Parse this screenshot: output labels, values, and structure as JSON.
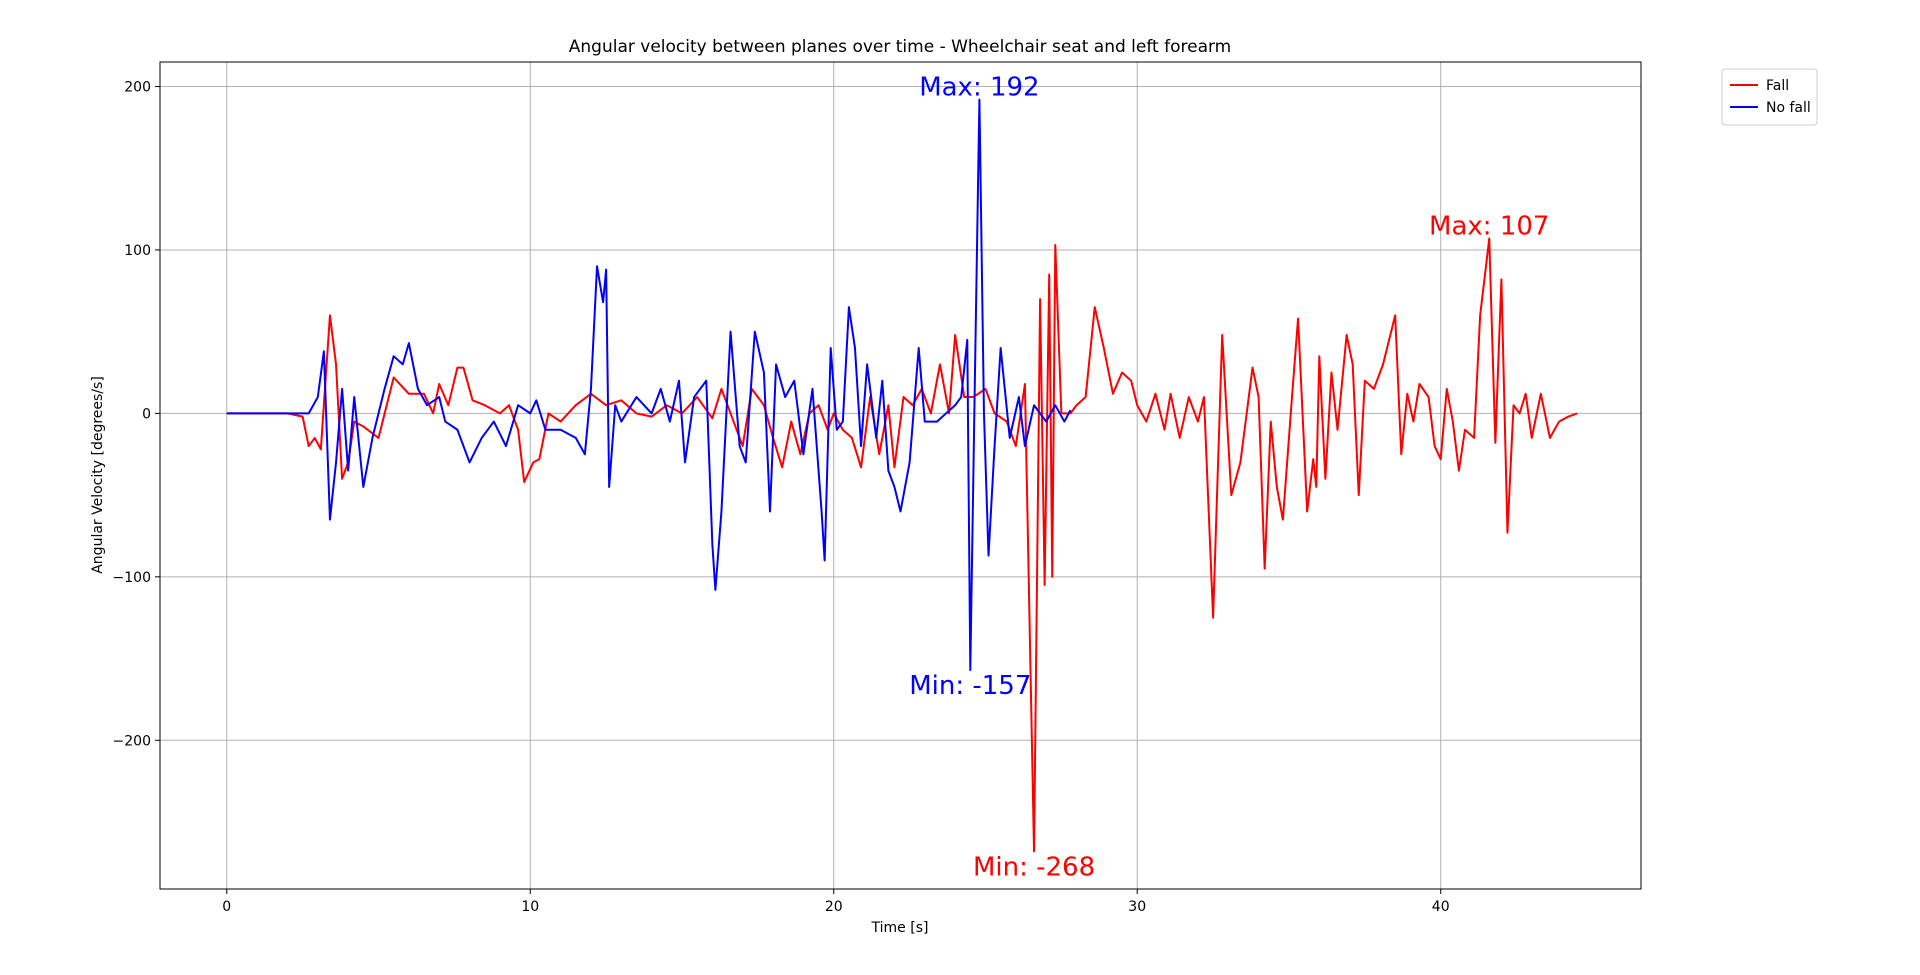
{
  "chart_data": {
    "type": "line",
    "title": "Angular velocity between planes over time - Wheelchair seat and left forearm",
    "x_label": "Time [s]",
    "y_label": "Angular Velocity [degrees/s]",
    "xlim": [
      -2.2,
      46.6
    ],
    "ylim": [
      -291,
      215
    ],
    "xticks": [
      0,
      10,
      20,
      30,
      40
    ],
    "yticks": [
      {
        "value": -200,
        "label": "−200"
      },
      {
        "value": -100,
        "label": "−100"
      },
      0,
      100,
      200
    ],
    "grid": true,
    "legend": "outside upper right",
    "series": [
      {
        "name": "Fall",
        "color": "#ff0000",
        "x": [
          0,
          1,
          2,
          2.5,
          2.7,
          2.9,
          3.1,
          3.4,
          3.6,
          3.8,
          4.0,
          4.2,
          4.5,
          5.0,
          5.5,
          6,
          6.5,
          6.8,
          7,
          7.3,
          7.6,
          7.8,
          8.1,
          8.5,
          9,
          9.3,
          9.6,
          9.8,
          10.1,
          10.3,
          10.6,
          11,
          11.5,
          12,
          12.5,
          13,
          13.5,
          14,
          14.5,
          15,
          15.5,
          16,
          16.3,
          16.7,
          17,
          17.3,
          17.7,
          18,
          18.3,
          18.6,
          18.9,
          19.2,
          19.5,
          19.8,
          20,
          20.3,
          20.6,
          20.9,
          21.2,
          21.5,
          21.8,
          22,
          22.3,
          22.6,
          22.9,
          23.2,
          23.5,
          23.8,
          24.0,
          24.3,
          24.6,
          25,
          25.3,
          25.7,
          26,
          26.3,
          26.6,
          26.8,
          26.95,
          27.1,
          27.2,
          27.3,
          27.5,
          27.8,
          28,
          28.3,
          28.6,
          28.9,
          29.2,
          29.5,
          29.8,
          30,
          30.3,
          30.6,
          30.9,
          31.1,
          31.4,
          31.7,
          32.0,
          32.2,
          32.5,
          32.8,
          33.1,
          33.4,
          33.8,
          34.0,
          34.2,
          34.4,
          34.6,
          34.8,
          35.1,
          35.3,
          35.6,
          35.8,
          35.9,
          36.0,
          36.2,
          36.4,
          36.6,
          36.9,
          37.1,
          37.3,
          37.5,
          37.8,
          38.1,
          38.5,
          38.7,
          38.9,
          39.1,
          39.3,
          39.6,
          39.8,
          40,
          40.2,
          40.4,
          40.6,
          40.8,
          41.1,
          41.3,
          41.6,
          41.8,
          42.0,
          42.2,
          42.4,
          42.6,
          42.8,
          43.0,
          43.3,
          43.6,
          43.9,
          44.2,
          44.5
        ],
        "values": [
          0,
          0,
          0,
          -2,
          -20,
          -15,
          -22,
          60,
          30,
          -40,
          -30,
          -5,
          -8,
          -15,
          22,
          12,
          12,
          0,
          18,
          5,
          28,
          28,
          8,
          5,
          0,
          5,
          -10,
          -42,
          -30,
          -28,
          0,
          -5,
          5,
          12,
          5,
          8,
          0,
          -2,
          5,
          0,
          10,
          -3,
          15,
          -5,
          -20,
          15,
          5,
          -15,
          -33,
          -5,
          -25,
          0,
          5,
          -10,
          0,
          -10,
          -15,
          -33,
          10,
          -25,
          5,
          -33,
          10,
          5,
          15,
          0,
          30,
          0,
          48,
          10,
          10,
          15,
          0,
          -5,
          -20,
          18,
          -268,
          70,
          -105,
          85,
          -100,
          103,
          0,
          0,
          5,
          10,
          65,
          40,
          12,
          25,
          20,
          5,
          -5,
          12,
          -10,
          12,
          -15,
          10,
          -5,
          10,
          -125,
          48,
          -50,
          -30,
          28,
          10,
          -95,
          -5,
          -45,
          -65,
          10,
          58,
          -60,
          -28,
          -45,
          35,
          -40,
          25,
          -10,
          48,
          30,
          -50,
          20,
          15,
          30,
          60,
          -25,
          12,
          -5,
          18,
          10,
          -20,
          -28,
          15,
          -5,
          -35,
          -10,
          -15,
          60,
          107,
          -18,
          82,
          -73,
          5,
          0,
          12,
          -15,
          12,
          -15,
          -5,
          -2,
          0
        ]
      },
      {
        "name": "No fall",
        "color": "#0000ff",
        "x": [
          0,
          1,
          2,
          2.7,
          3.0,
          3.2,
          3.4,
          3.6,
          3.8,
          4,
          4.2,
          4.5,
          4.8,
          5.2,
          5.5,
          5.8,
          6.0,
          6.3,
          6.6,
          7,
          7.2,
          7.6,
          8.0,
          8.4,
          8.8,
          9.2,
          9.6,
          10,
          10.2,
          10.5,
          11,
          11.5,
          11.8,
          12,
          12.2,
          12.4,
          12.5,
          12.6,
          12.8,
          13,
          13.5,
          14,
          14.3,
          14.6,
          14.9,
          15.1,
          15.4,
          15.8,
          16.0,
          16.1,
          16.3,
          16.6,
          16.9,
          17.1,
          17.4,
          17.7,
          17.9,
          18.1,
          18.4,
          18.7,
          19.0,
          19.3,
          19.6,
          19.7,
          19.9,
          20.1,
          20.3,
          20.5,
          20.7,
          20.9,
          21.1,
          21.4,
          21.6,
          21.8,
          22.0,
          22.2,
          22.5,
          22.8,
          23.0,
          23.4,
          23.7,
          24,
          24.2,
          24.4,
          24.5,
          24.65,
          24.8,
          24.95,
          25.1,
          25.3,
          25.5,
          25.8,
          26.1,
          26.3,
          26.6,
          27.0,
          27.3,
          27.6,
          27.8
        ],
        "values": [
          0,
          0,
          0,
          0,
          10,
          38,
          -65,
          -30,
          15,
          -35,
          10,
          -45,
          -15,
          15,
          35,
          30,
          43,
          15,
          5,
          10,
          -5,
          -10,
          -30,
          -15,
          -5,
          -20,
          5,
          0,
          8,
          -10,
          -10,
          -15,
          -25,
          15,
          90,
          68,
          88,
          -45,
          5,
          -5,
          10,
          0,
          15,
          -5,
          20,
          -30,
          10,
          20,
          -80,
          -108,
          -60,
          50,
          -20,
          -30,
          50,
          25,
          -60,
          30,
          10,
          20,
          -25,
          15,
          -60,
          -90,
          40,
          -10,
          -5,
          65,
          40,
          -20,
          30,
          -15,
          20,
          -35,
          -45,
          -60,
          -30,
          40,
          -5,
          -5,
          0,
          5,
          10,
          45,
          -157,
          20,
          192,
          0,
          -87,
          -20,
          40,
          -15,
          10,
          -20,
          5,
          -5,
          5,
          -5,
          2
        ]
      }
    ],
    "annotations": [
      {
        "text": "Max: 107",
        "x": 41.6,
        "y": 107,
        "color": "#ff0000"
      },
      {
        "text": "Min: -268",
        "x": 26.6,
        "y": -268,
        "color": "#ff0000"
      },
      {
        "text": "Max: 192",
        "x": 24.8,
        "y": 192,
        "color": "#0000ff"
      },
      {
        "text": "Min: -157",
        "x": 24.5,
        "y": -157,
        "color": "#0000ff"
      }
    ]
  }
}
